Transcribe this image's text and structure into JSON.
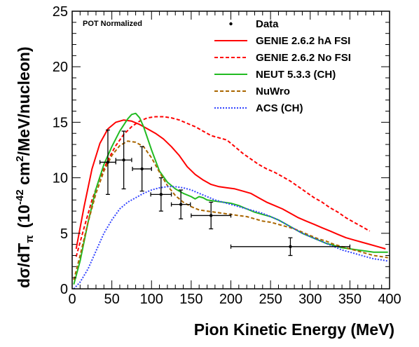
{
  "chart_data": {
    "type": "line",
    "xlabel": "Pion Kinetic Energy (MeV)",
    "ylabel_main": "dσ/dT",
    "ylabel_sub": "π",
    "ylabel_unit_pre": "(10",
    "ylabel_exp": "-42",
    "ylabel_unit_mid": " cm",
    "ylabel_sq": "2",
    "ylabel_unit_post": "/MeV/nucleon)",
    "annotation": "POT Normalized",
    "xlim": [
      0,
      400
    ],
    "ylim": [
      0,
      25
    ],
    "xticks": [
      0,
      50,
      100,
      150,
      200,
      250,
      300,
      350,
      400
    ],
    "yticks": [
      0,
      5,
      10,
      15,
      20,
      25
    ],
    "legend_placement": "top-right",
    "data_points": {
      "name": "Data",
      "points": [
        {
          "x": 45,
          "y": 11.4,
          "xerr": 10,
          "yerr": 2.9
        },
        {
          "x": 65,
          "y": 11.6,
          "xerr": 10,
          "yerr": 2.6
        },
        {
          "x": 88,
          "y": 10.8,
          "xerr": 12,
          "yerr": 2.0
        },
        {
          "x": 112,
          "y": 8.5,
          "xerr": 13,
          "yerr": 1.5
        },
        {
          "x": 137,
          "y": 7.6,
          "xerr": 12,
          "yerr": 1.3
        },
        {
          "x": 175,
          "y": 6.6,
          "xerr": 25,
          "yerr": 1.2
        },
        {
          "x": 275,
          "y": 3.8,
          "xerr": 75,
          "yerr": 0.8
        }
      ]
    },
    "series": [
      {
        "name": "GENIE 2.6.2 hA FSI",
        "color": "#ff0000",
        "style": "solid",
        "x": [
          5,
          15,
          25,
          35,
          45,
          55,
          65,
          75,
          85,
          95,
          105,
          115,
          125,
          135,
          145,
          155,
          165,
          175,
          185,
          195,
          205,
          215,
          225,
          235,
          245,
          255,
          265,
          275,
          285,
          295,
          305,
          315,
          325,
          335,
          345,
          355,
          365,
          375,
          385,
          395
        ],
        "y": [
          3.6,
          7.4,
          10.8,
          13.1,
          14.4,
          15.0,
          15.2,
          15.1,
          14.8,
          14.4,
          14.0,
          13.5,
          12.8,
          12.0,
          11.0,
          10.3,
          9.8,
          9.4,
          9.2,
          9.1,
          9.0,
          8.8,
          8.6,
          8.2,
          7.8,
          7.5,
          7.2,
          6.8,
          6.4,
          6.1,
          5.8,
          5.5,
          5.2,
          4.9,
          4.6,
          4.4,
          4.2,
          4.0,
          3.8,
          3.6
        ]
      },
      {
        "name": "GENIE 2.6.2 No FSI",
        "color": "#ff0000",
        "style": "dashed",
        "x": [
          5,
          15,
          25,
          35,
          45,
          55,
          65,
          75,
          85,
          95,
          105,
          115,
          125,
          135,
          145,
          155,
          165,
          175,
          185,
          195,
          205,
          215,
          225,
          235,
          245,
          255,
          265,
          275,
          285,
          295,
          305,
          315,
          325,
          335,
          345,
          355,
          365,
          375
        ],
        "y": [
          2.9,
          5.5,
          8.0,
          10.0,
          11.6,
          12.9,
          13.9,
          14.6,
          15.1,
          15.4,
          15.5,
          15.5,
          15.4,
          15.2,
          14.9,
          14.6,
          14.2,
          13.8,
          13.6,
          13.4,
          12.8,
          12.2,
          11.7,
          11.2,
          10.8,
          10.5,
          10.1,
          9.7,
          9.2,
          8.7,
          8.2,
          7.8,
          7.3,
          6.9,
          6.4,
          6.0,
          5.6,
          5.2
        ]
      },
      {
        "name": "NEUT 5.3.3 (CH)",
        "color": "#22bb22",
        "style": "solid",
        "x": [
          2,
          10,
          20,
          30,
          40,
          50,
          60,
          70,
          75,
          80,
          85,
          90,
          100,
          110,
          120,
          130,
          140,
          150,
          155,
          160,
          165,
          170,
          180,
          190,
          200,
          210,
          220,
          230,
          240,
          250,
          260,
          270,
          280,
          290,
          300,
          310,
          320,
          330,
          340,
          350,
          360,
          370,
          380,
          390,
          398
        ],
        "y": [
          0.4,
          2.5,
          6.0,
          9.0,
          11.2,
          12.8,
          14.2,
          15.3,
          15.7,
          15.8,
          15.4,
          14.6,
          12.5,
          10.6,
          9.6,
          9.0,
          8.6,
          8.3,
          8.1,
          8.3,
          8.2,
          8.0,
          7.9,
          7.8,
          7.7,
          7.5,
          7.2,
          6.9,
          6.7,
          6.5,
          6.2,
          5.8,
          5.4,
          5.0,
          4.7,
          4.4,
          4.1,
          3.9,
          3.7,
          3.6,
          3.5,
          3.4,
          3.3,
          3.3,
          3.3
        ]
      },
      {
        "name": "NuWro",
        "color": "#aa6600",
        "style": "dashed",
        "x": [
          2,
          10,
          20,
          30,
          40,
          50,
          60,
          70,
          80,
          90,
          100,
          110,
          120,
          130,
          140,
          150,
          160,
          170,
          180,
          190,
          200,
          210,
          220,
          230,
          240,
          250,
          260,
          270,
          280,
          290,
          300,
          310,
          320,
          330,
          340,
          350,
          360,
          370,
          380,
          390,
          398
        ],
        "y": [
          0.8,
          3.0,
          6.0,
          8.6,
          10.6,
          12.0,
          12.9,
          13.3,
          13.2,
          12.8,
          11.8,
          10.5,
          9.3,
          8.4,
          7.8,
          7.4,
          7.1,
          7.0,
          6.9,
          6.8,
          6.7,
          6.6,
          6.5,
          6.3,
          6.1,
          6.0,
          5.8,
          5.6,
          5.4,
          5.1,
          4.8,
          4.5,
          4.3,
          4.0,
          3.8,
          3.6,
          3.4,
          3.2,
          3.0,
          2.9,
          2.8
        ]
      },
      {
        "name": "ACS (CH)",
        "color": "#3344ff",
        "style": "dotted",
        "x": [
          2,
          10,
          20,
          30,
          40,
          50,
          60,
          70,
          80,
          90,
          100,
          110,
          120,
          130,
          140,
          150,
          160,
          170,
          180,
          190,
          200,
          210,
          220,
          230,
          240,
          250,
          260,
          270,
          280,
          290,
          300,
          310,
          320,
          330,
          340,
          350,
          360,
          370,
          380,
          390,
          398
        ],
        "y": [
          0.0,
          0.6,
          1.8,
          3.4,
          5.0,
          6.2,
          7.2,
          7.8,
          8.2,
          8.6,
          8.9,
          9.1,
          9.2,
          9.2,
          9.1,
          8.9,
          8.6,
          8.3,
          8.0,
          7.8,
          7.6,
          7.4,
          7.2,
          7.0,
          6.8,
          6.5,
          6.2,
          5.8,
          5.4,
          5.0,
          4.7,
          4.4,
          4.1,
          3.8,
          3.5,
          3.3,
          3.1,
          2.9,
          2.7,
          2.6,
          2.5
        ]
      }
    ]
  }
}
